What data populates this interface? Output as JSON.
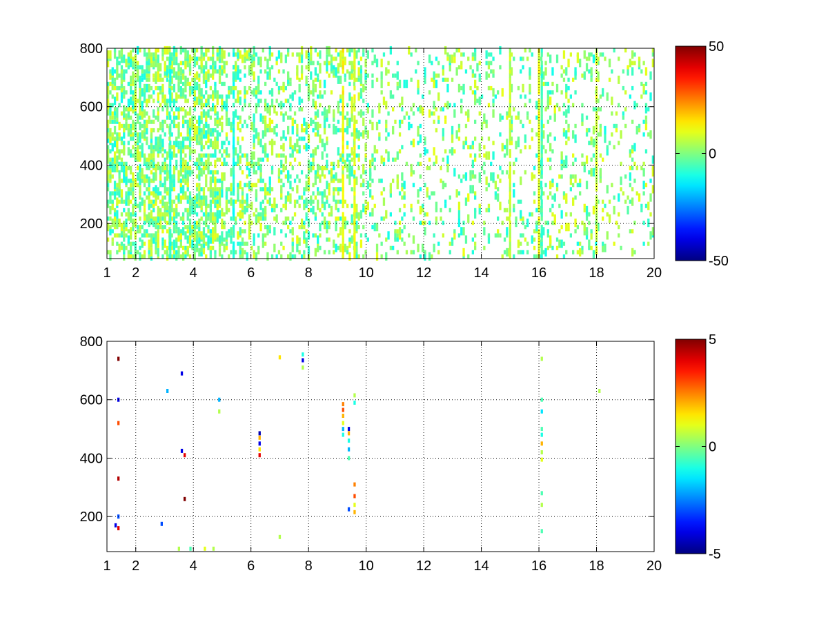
{
  "chart_data": [
    {
      "type": "heatmap",
      "title": "",
      "xlabel": "",
      "ylabel": "",
      "xlim": [
        1,
        20
      ],
      "ylim": [
        80,
        800
      ],
      "x_ticks": [
        1,
        2,
        4,
        6,
        8,
        10,
        12,
        14,
        16,
        18,
        20
      ],
      "y_ticks": [
        200,
        400,
        600,
        800
      ],
      "grid": true,
      "colormap": "jet",
      "colorbar": {
        "min": -50,
        "max": 50,
        "ticks": [
          -50,
          0,
          50
        ]
      },
      "density": 0.35,
      "amplitude": 0.22,
      "dense_columns": [
        {
          "x": 3.2,
          "value": -8
        },
        {
          "x": 5.4,
          "value": -10
        },
        {
          "x": 9.2,
          "value": 12
        },
        {
          "x": 9.6,
          "value": 10
        },
        {
          "x": 15.0,
          "value": 6
        },
        {
          "x": 16.0,
          "value": 10
        },
        {
          "x": 16.1,
          "value": -6
        },
        {
          "x": 18.0,
          "value": 8
        }
      ]
    },
    {
      "type": "heatmap",
      "title": "",
      "xlabel": "",
      "ylabel": "",
      "xlim": [
        1,
        20
      ],
      "ylim": [
        80,
        800
      ],
      "x_ticks": [
        1,
        2,
        4,
        6,
        8,
        10,
        12,
        14,
        16,
        18,
        20
      ],
      "y_ticks": [
        200,
        400,
        600,
        800
      ],
      "grid": true,
      "colormap": "jet",
      "colorbar": {
        "min": -5,
        "max": 5,
        "ticks": [
          -5,
          0,
          5
        ]
      },
      "cells": [
        {
          "x": 1.4,
          "y": 160,
          "value": 4
        },
        {
          "x": 1.4,
          "y": 200,
          "value": -3
        },
        {
          "x": 1.4,
          "y": 330,
          "value": 4.5
        },
        {
          "x": 1.4,
          "y": 520,
          "value": 3
        },
        {
          "x": 1.4,
          "y": 600,
          "value": -4
        },
        {
          "x": 1.4,
          "y": 740,
          "value": 5
        },
        {
          "x": 1.3,
          "y": 170,
          "value": -4
        },
        {
          "x": 3.7,
          "y": 260,
          "value": 5
        },
        {
          "x": 3.7,
          "y": 410,
          "value": 4
        },
        {
          "x": 3.6,
          "y": 425,
          "value": -4
        },
        {
          "x": 3.1,
          "y": 630,
          "value": -2
        },
        {
          "x": 3.6,
          "y": 690,
          "value": -4
        },
        {
          "x": 2.9,
          "y": 175,
          "value": -3
        },
        {
          "x": 4.9,
          "y": 600,
          "value": -2
        },
        {
          "x": 4.9,
          "y": 560,
          "value": 0.5
        },
        {
          "x": 6.3,
          "y": 410,
          "value": 4
        },
        {
          "x": 6.3,
          "y": 430,
          "value": 1.5
        },
        {
          "x": 6.3,
          "y": 450,
          "value": -4
        },
        {
          "x": 6.3,
          "y": 470,
          "value": 2
        },
        {
          "x": 6.3,
          "y": 485,
          "value": -4.5
        },
        {
          "x": 7.0,
          "y": 745,
          "value": 1.5
        },
        {
          "x": 7.8,
          "y": 710,
          "value": 0.5
        },
        {
          "x": 7.8,
          "y": 735,
          "value": -4
        },
        {
          "x": 7.8,
          "y": 755,
          "value": -1
        },
        {
          "x": 9.2,
          "y": 480,
          "value": -1
        },
        {
          "x": 9.2,
          "y": 500,
          "value": -2
        },
        {
          "x": 9.2,
          "y": 520,
          "value": 1
        },
        {
          "x": 9.2,
          "y": 545,
          "value": 2
        },
        {
          "x": 9.2,
          "y": 565,
          "value": 3
        },
        {
          "x": 9.2,
          "y": 585,
          "value": 2.5
        },
        {
          "x": 9.4,
          "y": 225,
          "value": -3
        },
        {
          "x": 9.4,
          "y": 400,
          "value": -0.5
        },
        {
          "x": 9.4,
          "y": 430,
          "value": -2
        },
        {
          "x": 9.4,
          "y": 460,
          "value": -1
        },
        {
          "x": 9.4,
          "y": 485,
          "value": 2
        },
        {
          "x": 9.4,
          "y": 500,
          "value": -4
        },
        {
          "x": 9.6,
          "y": 215,
          "value": 2
        },
        {
          "x": 9.6,
          "y": 240,
          "value": 1
        },
        {
          "x": 9.6,
          "y": 270,
          "value": 3
        },
        {
          "x": 9.6,
          "y": 310,
          "value": 2.5
        },
        {
          "x": 9.6,
          "y": 590,
          "value": -1
        },
        {
          "x": 9.6,
          "y": 615,
          "value": 0.5
        },
        {
          "x": 7.0,
          "y": 130,
          "value": 0.5
        },
        {
          "x": 16.1,
          "y": 150,
          "value": -0.5
        },
        {
          "x": 16.1,
          "y": 240,
          "value": 0.5
        },
        {
          "x": 16.1,
          "y": 280,
          "value": -0.5
        },
        {
          "x": 16.1,
          "y": 395,
          "value": 1
        },
        {
          "x": 16.1,
          "y": 420,
          "value": 0.5
        },
        {
          "x": 16.1,
          "y": 450,
          "value": 2
        },
        {
          "x": 16.1,
          "y": 480,
          "value": -1
        },
        {
          "x": 16.1,
          "y": 500,
          "value": -0.5
        },
        {
          "x": 16.1,
          "y": 560,
          "value": -1.5
        },
        {
          "x": 16.1,
          "y": 600,
          "value": -0.5
        },
        {
          "x": 16.1,
          "y": 740,
          "value": 0.5
        },
        {
          "x": 18.1,
          "y": 630,
          "value": 0.5
        },
        {
          "x": 3.5,
          "y": 90,
          "value": 0.5
        },
        {
          "x": 3.9,
          "y": 90,
          "value": -0.5
        },
        {
          "x": 4.4,
          "y": 90,
          "value": 1
        },
        {
          "x": 4.7,
          "y": 90,
          "value": 0.5
        }
      ]
    }
  ]
}
